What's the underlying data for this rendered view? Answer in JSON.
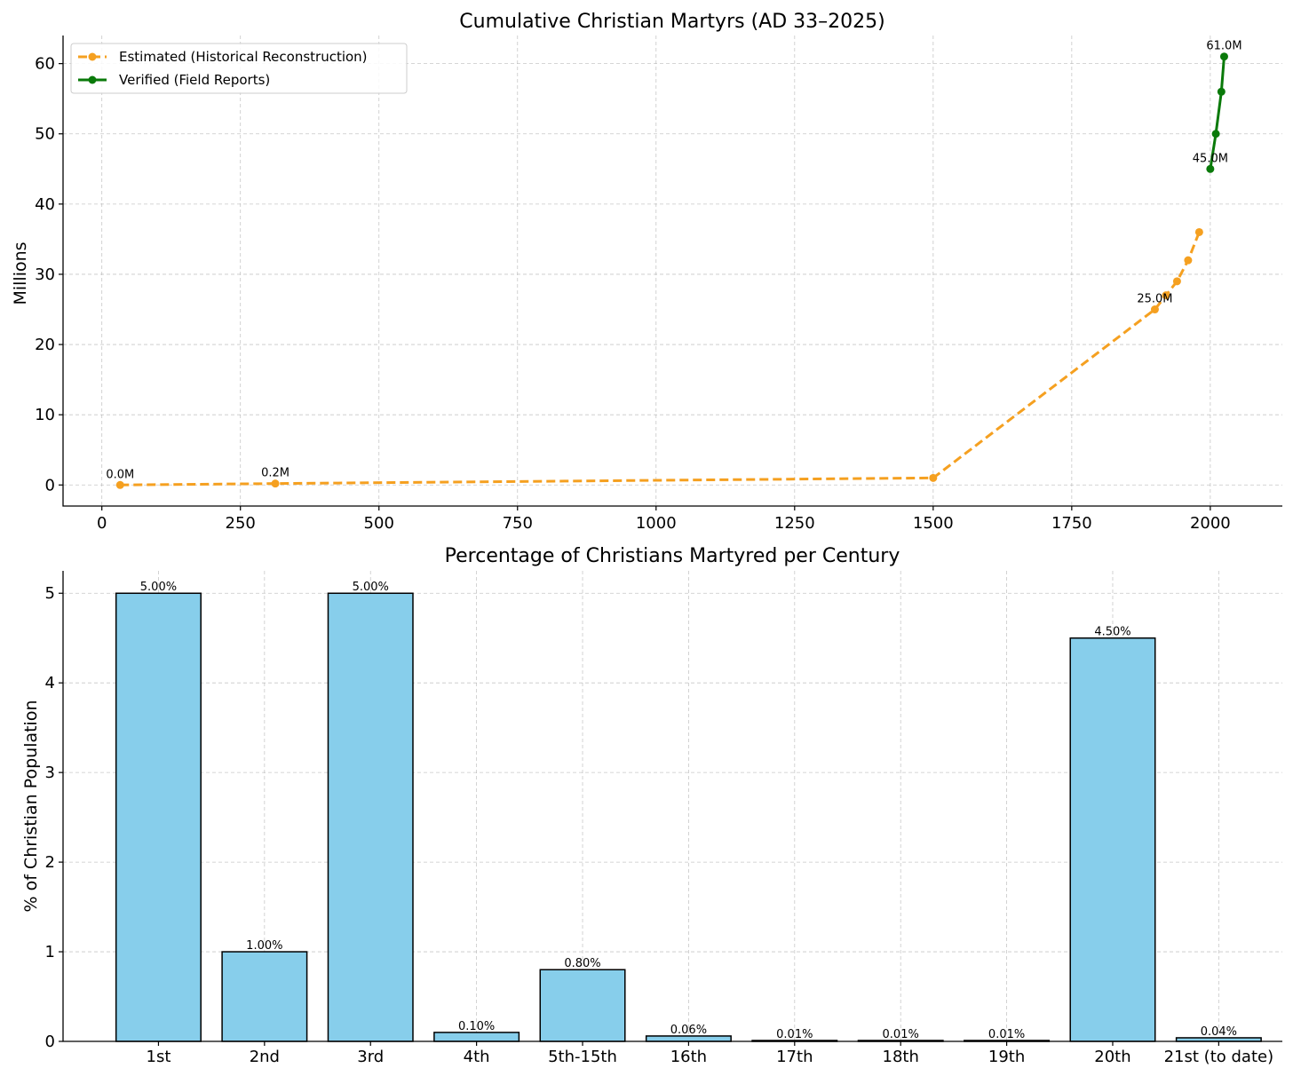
{
  "chart_data": [
    {
      "type": "line",
      "title": "Cumulative Christian Martyrs (AD 33–2025)",
      "xlabel": "",
      "ylabel": "Millions",
      "xlim": [
        -70,
        2130
      ],
      "ylim": [
        -3,
        64
      ],
      "xticks": [
        0,
        250,
        500,
        750,
        1000,
        1250,
        1500,
        1750,
        2000
      ],
      "yticks": [
        0,
        10,
        20,
        30,
        40,
        50,
        60
      ],
      "grid": true,
      "legend_position": "top-left",
      "series": [
        {
          "name": "Estimated (Historical Reconstruction)",
          "color": "#F5A020",
          "style": "dashed",
          "x": [
            33,
            313,
            1500,
            1900,
            1920,
            1940,
            1960,
            1980
          ],
          "y": [
            0.0,
            0.2,
            1.0,
            25.0,
            27.0,
            29.0,
            32.0,
            36.0
          ]
        },
        {
          "name": "Verified (Field Reports)",
          "color": "#0A7A0A",
          "style": "solid",
          "x": [
            2000,
            2010,
            2020,
            2025
          ],
          "y": [
            45.0,
            50.0,
            56.0,
            61.0
          ]
        }
      ],
      "annotations": [
        {
          "x": 33,
          "y": 0.0,
          "text": "0.0M"
        },
        {
          "x": 313,
          "y": 0.2,
          "text": "0.2M"
        },
        {
          "x": 1900,
          "y": 25.0,
          "text": "25.0M"
        },
        {
          "x": 2000,
          "y": 45.0,
          "text": "45.0M"
        },
        {
          "x": 2025,
          "y": 61.0,
          "text": "61.0M"
        }
      ]
    },
    {
      "type": "bar",
      "title": "Percentage of Christians Martyred per Century",
      "xlabel": "",
      "ylabel": "% of Christian Population",
      "ylim": [
        0,
        5.25
      ],
      "yticks": [
        0,
        1,
        2,
        3,
        4,
        5
      ],
      "grid": true,
      "bar_color": "#87CEEB",
      "edge_color": "#000000",
      "categories": [
        "1st",
        "2nd",
        "3rd",
        "4th",
        "5th-15th",
        "16th",
        "17th",
        "18th",
        "19th",
        "20th",
        "21st (to date)"
      ],
      "values": [
        5.0,
        1.0,
        5.0,
        0.1,
        0.8,
        0.06,
        0.01,
        0.01,
        0.01,
        4.5,
        0.04
      ],
      "value_labels": [
        "5.00%",
        "1.00%",
        "5.00%",
        "0.10%",
        "0.80%",
        "0.06%",
        "0.01%",
        "0.01%",
        "0.01%",
        "4.50%",
        "0.04%"
      ]
    }
  ]
}
